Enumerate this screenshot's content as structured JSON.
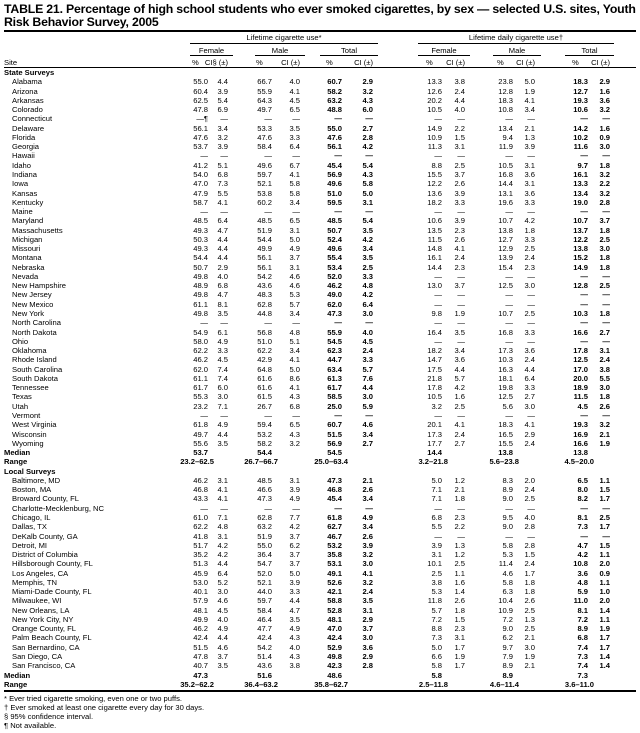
{
  "title": "TABLE 21. Percentage of high school students who ever smoked cigarettes, by sex — selected U.S. sites, Youth Risk Behavior Survey, 2005",
  "headers": {
    "lifetime": "Lifetime cigarette use*",
    "daily": "Lifetime daily cigarette use†",
    "female": "Female",
    "male": "Male",
    "total": "Total",
    "site": "Site",
    "pct": "%",
    "ci": "CI (±)",
    "ci_first": "CI§ (±)"
  },
  "sections": [
    {
      "label": "State Surveys",
      "rows": [
        [
          "Alabama",
          "55.0",
          "4.4",
          "66.7",
          "4.0",
          "60.7",
          "2.9",
          "13.3",
          "3.8",
          "23.8",
          "5.0",
          "18.3",
          "2.9"
        ],
        [
          "Arizona",
          "60.4",
          "3.9",
          "55.9",
          "4.1",
          "58.2",
          "3.2",
          "12.6",
          "2.4",
          "12.8",
          "1.9",
          "12.7",
          "1.6"
        ],
        [
          "Arkansas",
          "62.5",
          "5.4",
          "64.3",
          "4.5",
          "63.2",
          "4.3",
          "20.2",
          "4.4",
          "18.3",
          "4.1",
          "19.3",
          "3.6"
        ],
        [
          "Colorado",
          "47.8",
          "6.9",
          "49.7",
          "6.5",
          "48.8",
          "6.0",
          "10.5",
          "4.0",
          "10.8",
          "3.4",
          "10.6",
          "3.2"
        ],
        [
          "Connecticut",
          "—¶",
          "—",
          "—",
          "—",
          "—",
          "—",
          "—",
          "—",
          "—",
          "—",
          "—",
          "—"
        ],
        [
          "Delaware",
          "56.1",
          "3.4",
          "53.3",
          "3.5",
          "55.0",
          "2.7",
          "14.9",
          "2.2",
          "13.4",
          "2.1",
          "14.2",
          "1.6"
        ],
        [
          "Florida",
          "47.6",
          "3.2",
          "47.6",
          "3.3",
          "47.6",
          "2.8",
          "10.9",
          "1.5",
          "9.4",
          "1.3",
          "10.2",
          "0.9"
        ],
        [
          "Georgia",
          "53.7",
          "3.9",
          "58.4",
          "6.4",
          "56.1",
          "4.2",
          "11.3",
          "3.1",
          "11.9",
          "3.9",
          "11.6",
          "3.0"
        ],
        [
          "Hawaii",
          "—",
          "—",
          "—",
          "—",
          "—",
          "—",
          "—",
          "—",
          "—",
          "—",
          "—",
          "—"
        ],
        [
          "Idaho",
          "41.2",
          "5.1",
          "49.6",
          "6.7",
          "45.4",
          "5.4",
          "8.8",
          "2.5",
          "10.5",
          "3.1",
          "9.7",
          "1.8"
        ],
        [
          "Indiana",
          "54.0",
          "6.8",
          "59.7",
          "4.1",
          "56.9",
          "4.3",
          "15.5",
          "3.7",
          "16.8",
          "3.6",
          "16.1",
          "3.2"
        ],
        [
          "Iowa",
          "47.0",
          "7.3",
          "52.1",
          "5.8",
          "49.6",
          "5.8",
          "12.2",
          "2.6",
          "14.4",
          "3.1",
          "13.3",
          "2.2"
        ],
        [
          "Kansas",
          "47.9",
          "5.5",
          "53.8",
          "5.8",
          "51.0",
          "5.0",
          "13.6",
          "3.9",
          "13.1",
          "3.6",
          "13.4",
          "3.2"
        ],
        [
          "Kentucky",
          "58.7",
          "4.1",
          "60.2",
          "3.4",
          "59.5",
          "3.1",
          "18.2",
          "3.3",
          "19.6",
          "3.3",
          "19.0",
          "2.8"
        ],
        [
          "Maine",
          "—",
          "—",
          "—",
          "—",
          "—",
          "—",
          "—",
          "—",
          "—",
          "—",
          "—",
          "—"
        ],
        [
          "Maryland",
          "48.5",
          "6.4",
          "48.5",
          "6.5",
          "48.5",
          "5.4",
          "10.6",
          "3.9",
          "10.7",
          "4.2",
          "10.7",
          "3.7"
        ],
        [
          "Massachusetts",
          "49.3",
          "4.7",
          "51.9",
          "3.1",
          "50.7",
          "3.5",
          "13.5",
          "2.3",
          "13.8",
          "1.8",
          "13.7",
          "1.8"
        ],
        [
          "Michigan",
          "50.3",
          "4.4",
          "54.4",
          "5.0",
          "52.4",
          "4.2",
          "11.5",
          "2.6",
          "12.7",
          "3.3",
          "12.2",
          "2.5"
        ],
        [
          "Missouri",
          "49.3",
          "4.4",
          "49.9",
          "4.9",
          "49.6",
          "3.4",
          "14.8",
          "4.1",
          "12.9",
          "2.5",
          "13.8",
          "3.0"
        ],
        [
          "Montana",
          "54.4",
          "4.4",
          "56.1",
          "3.7",
          "55.4",
          "3.5",
          "16.1",
          "2.4",
          "13.9",
          "2.4",
          "15.2",
          "1.8"
        ],
        [
          "Nebraska",
          "50.7",
          "2.9",
          "56.1",
          "3.1",
          "53.4",
          "2.5",
          "14.4",
          "2.3",
          "15.4",
          "2.3",
          "14.9",
          "1.8"
        ],
        [
          "Nevada",
          "49.8",
          "4.0",
          "54.2",
          "4.6",
          "52.0",
          "3.3",
          "—",
          "—",
          "—",
          "—",
          "—",
          "—"
        ],
        [
          "New Hampshire",
          "48.9",
          "6.8",
          "43.6",
          "4.6",
          "46.2",
          "4.8",
          "13.0",
          "3.7",
          "12.5",
          "3.0",
          "12.8",
          "2.5"
        ],
        [
          "New Jersey",
          "49.8",
          "4.7",
          "48.3",
          "5.3",
          "49.0",
          "4.2",
          "—",
          "—",
          "—",
          "—",
          "—",
          "—"
        ],
        [
          "New Mexico",
          "61.1",
          "8.1",
          "62.8",
          "5.7",
          "62.0",
          "6.4",
          "—",
          "—",
          "—",
          "—",
          "—",
          "—"
        ],
        [
          "New York",
          "49.8",
          "3.5",
          "44.8",
          "3.4",
          "47.3",
          "3.0",
          "9.8",
          "1.9",
          "10.7",
          "2.5",
          "10.3",
          "1.8"
        ],
        [
          "North Carolina",
          "—",
          "—",
          "—",
          "—",
          "—",
          "—",
          "—",
          "—",
          "—",
          "—",
          "—",
          "—"
        ],
        [
          "North Dakota",
          "54.9",
          "6.1",
          "56.8",
          "4.8",
          "55.9",
          "4.0",
          "16.4",
          "3.5",
          "16.8",
          "3.3",
          "16.6",
          "2.7"
        ],
        [
          "Ohio",
          "58.0",
          "4.9",
          "51.0",
          "5.1",
          "54.5",
          "4.5",
          "—",
          "—",
          "—",
          "—",
          "—",
          "—"
        ],
        [
          "Oklahoma",
          "62.2",
          "3.3",
          "62.2",
          "3.4",
          "62.3",
          "2.4",
          "18.2",
          "3.4",
          "17.3",
          "3.6",
          "17.8",
          "3.1"
        ],
        [
          "Rhode Island",
          "46.2",
          "4.5",
          "42.9",
          "4.1",
          "44.7",
          "3.3",
          "14.7",
          "3.6",
          "10.3",
          "2.4",
          "12.5",
          "2.4"
        ],
        [
          "South Carolina",
          "62.0",
          "7.4",
          "64.8",
          "5.0",
          "63.4",
          "5.7",
          "17.5",
          "4.4",
          "16.3",
          "4.4",
          "17.0",
          "3.8"
        ],
        [
          "South Dakota",
          "61.1",
          "7.4",
          "61.6",
          "8.6",
          "61.3",
          "7.6",
          "21.8",
          "5.7",
          "18.1",
          "6.4",
          "20.0",
          "5.5"
        ],
        [
          "Tennessee",
          "61.7",
          "6.0",
          "61.6",
          "4.1",
          "61.7",
          "4.4",
          "17.8",
          "4.2",
          "19.8",
          "3.3",
          "18.9",
          "3.0"
        ],
        [
          "Texas",
          "55.3",
          "3.0",
          "61.5",
          "4.3",
          "58.5",
          "3.0",
          "10.5",
          "1.6",
          "12.5",
          "2.7",
          "11.5",
          "1.8"
        ],
        [
          "Utah",
          "23.2",
          "7.1",
          "26.7",
          "6.8",
          "25.0",
          "5.9",
          "3.2",
          "2.5",
          "5.6",
          "3.0",
          "4.5",
          "2.6"
        ],
        [
          "Vermont",
          "—",
          "—",
          "—",
          "—",
          "—",
          "—",
          "—",
          "—",
          "—",
          "—",
          "—",
          "—"
        ],
        [
          "West Virginia",
          "61.8",
          "4.9",
          "59.4",
          "6.5",
          "60.7",
          "4.6",
          "20.1",
          "4.1",
          "18.3",
          "4.1",
          "19.3",
          "3.2"
        ],
        [
          "Wisconsin",
          "49.7",
          "4.4",
          "53.2",
          "4.3",
          "51.5",
          "3.4",
          "17.3",
          "2.4",
          "16.5",
          "2.9",
          "16.9",
          "2.1"
        ],
        [
          "Wyoming",
          "55.6",
          "3.5",
          "58.2",
          "3.2",
          "56.9",
          "2.7",
          "17.7",
          "2.7",
          "15.5",
          "2.4",
          "16.6",
          "1.9"
        ]
      ],
      "median": [
        "Median",
        "53.7",
        "54.4",
        "54.5",
        "14.4",
        "13.8",
        "13.8"
      ],
      "range": [
        "Range",
        "23.2–62.5",
        "26.7–66.7",
        "25.0–63.4",
        "3.2–21.8",
        "5.6–23.8",
        "4.5–20.0"
      ]
    },
    {
      "label": "Local Surveys",
      "rows": [
        [
          "Baltimore, MD",
          "46.2",
          "3.1",
          "48.5",
          "3.1",
          "47.3",
          "2.1",
          "5.0",
          "1.2",
          "8.3",
          "2.0",
          "6.5",
          "1.1"
        ],
        [
          "Boston, MA",
          "46.8",
          "4.1",
          "46.6",
          "3.9",
          "46.8",
          "2.6",
          "7.1",
          "2.1",
          "8.9",
          "2.4",
          "8.0",
          "1.5"
        ],
        [
          "Broward County, FL",
          "43.3",
          "4.1",
          "47.3",
          "4.9",
          "45.4",
          "3.4",
          "7.1",
          "1.8",
          "9.0",
          "2.5",
          "8.2",
          "1.7"
        ],
        [
          "Charlotte-Mecklenburg, NC",
          "—",
          "—",
          "—",
          "—",
          "—",
          "—",
          "—",
          "—",
          "—",
          "—",
          "—",
          "—"
        ],
        [
          "Chicago, IL",
          "61.0",
          "7.1",
          "62.8",
          "7.7",
          "61.8",
          "4.9",
          "6.8",
          "2.3",
          "9.5",
          "4.0",
          "8.1",
          "2.5"
        ],
        [
          "Dallas, TX",
          "62.2",
          "4.8",
          "63.2",
          "4.2",
          "62.7",
          "3.4",
          "5.5",
          "2.2",
          "9.0",
          "2.8",
          "7.3",
          "1.7"
        ],
        [
          "DeKalb County, GA",
          "41.8",
          "3.1",
          "51.9",
          "3.7",
          "46.7",
          "2.6",
          "—",
          "—",
          "—",
          "—",
          "—",
          "—"
        ],
        [
          "Detroit, MI",
          "51.7",
          "4.2",
          "55.0",
          "6.2",
          "53.2",
          "3.9",
          "3.9",
          "1.3",
          "5.8",
          "2.8",
          "4.7",
          "1.5"
        ],
        [
          "District of Columbia",
          "35.2",
          "4.2",
          "36.4",
          "3.7",
          "35.8",
          "3.2",
          "3.1",
          "1.2",
          "5.3",
          "1.5",
          "4.2",
          "1.1"
        ],
        [
          "Hillsborough County, FL",
          "51.3",
          "4.4",
          "54.7",
          "3.7",
          "53.1",
          "3.0",
          "10.1",
          "2.5",
          "11.4",
          "2.4",
          "10.8",
          "2.0"
        ],
        [
          "Los Angeles, CA",
          "45.9",
          "6.4",
          "52.0",
          "5.0",
          "49.1",
          "4.1",
          "2.5",
          "1.1",
          "4.6",
          "1.7",
          "3.6",
          "0.9"
        ],
        [
          "Memphis, TN",
          "53.0",
          "5.2",
          "52.1",
          "3.9",
          "52.6",
          "3.2",
          "3.8",
          "1.6",
          "5.8",
          "1.8",
          "4.8",
          "1.1"
        ],
        [
          "Miami-Dade County, FL",
          "40.1",
          "3.0",
          "44.0",
          "3.3",
          "42.1",
          "2.4",
          "5.3",
          "1.4",
          "6.3",
          "1.8",
          "5.9",
          "1.0"
        ],
        [
          "Milwaukee, WI",
          "57.9",
          "4.6",
          "59.7",
          "4.4",
          "58.8",
          "3.5",
          "11.8",
          "2.6",
          "10.4",
          "2.6",
          "11.0",
          "2.0"
        ],
        [
          "New Orleans, LA",
          "48.1",
          "4.5",
          "58.4",
          "4.7",
          "52.8",
          "3.1",
          "5.7",
          "1.8",
          "10.9",
          "2.5",
          "8.1",
          "1.4"
        ],
        [
          "New York City, NY",
          "49.9",
          "4.0",
          "46.4",
          "3.5",
          "48.1",
          "2.9",
          "7.2",
          "1.5",
          "7.2",
          "1.3",
          "7.2",
          "1.1"
        ],
        [
          "Orange County, FL",
          "46.2",
          "4.9",
          "47.7",
          "4.9",
          "47.0",
          "3.7",
          "8.8",
          "2.3",
          "9.0",
          "2.5",
          "8.9",
          "1.9"
        ],
        [
          "Palm Beach County, FL",
          "42.4",
          "4.4",
          "42.4",
          "4.3",
          "42.4",
          "3.0",
          "7.3",
          "3.1",
          "6.2",
          "2.1",
          "6.8",
          "1.7"
        ],
        [
          "San Bernardino, CA",
          "51.5",
          "4.6",
          "54.2",
          "4.0",
          "52.9",
          "3.6",
          "5.0",
          "1.7",
          "9.7",
          "3.0",
          "7.4",
          "1.7"
        ],
        [
          "San Diego, CA",
          "47.8",
          "3.7",
          "51.4",
          "4.3",
          "49.8",
          "2.9",
          "6.6",
          "1.9",
          "7.9",
          "1.9",
          "7.3",
          "1.4"
        ],
        [
          "San Francisco, CA",
          "40.7",
          "3.5",
          "43.6",
          "3.8",
          "42.3",
          "2.8",
          "5.8",
          "1.7",
          "8.9",
          "2.1",
          "7.4",
          "1.4"
        ]
      ],
      "median": [
        "Median",
        "47.3",
        "51.6",
        "48.6",
        "5.8",
        "8.9",
        "7.3"
      ],
      "range": [
        "Range",
        "35.2–62.2",
        "36.4–63.2",
        "35.8–62.7",
        "2.5–11.8",
        "4.6–11.4",
        "3.6–11.0"
      ]
    }
  ],
  "footnotes": [
    "* Ever tried cigarette smoking, even one or two puffs.",
    "† Ever smoked at least one cigarette every day for 30 days.",
    "§ 95% confidence interval.",
    "¶ Not available."
  ]
}
